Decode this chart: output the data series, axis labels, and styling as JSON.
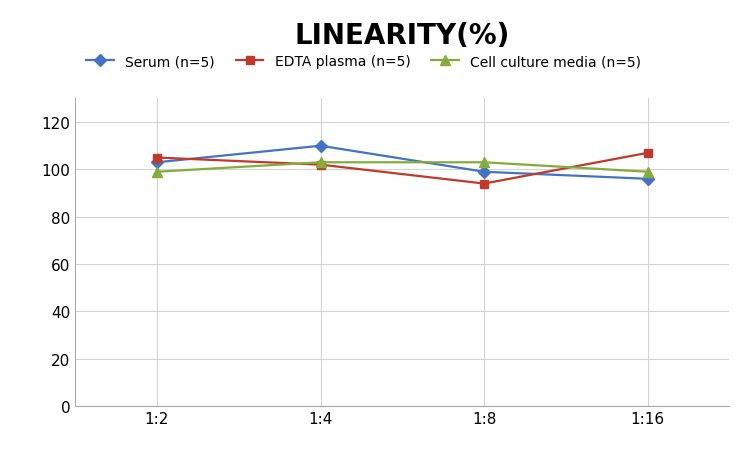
{
  "title": "LINEARITY(%)",
  "x_labels": [
    "1:2",
    "1:4",
    "1:8",
    "1:16"
  ],
  "x_positions": [
    0,
    1,
    2,
    3
  ],
  "series": [
    {
      "label": "Serum (n=5)",
      "values": [
        103,
        110,
        99,
        96
      ],
      "color": "#4472C4",
      "marker": "D",
      "markersize": 6,
      "linewidth": 1.6
    },
    {
      "label": "EDTA plasma (n=5)",
      "values": [
        105,
        102,
        94,
        107
      ],
      "color": "#C0392B",
      "marker": "s",
      "markersize": 6,
      "linewidth": 1.6
    },
    {
      "label": "Cell culture media (n=5)",
      "values": [
        99,
        103,
        103,
        99
      ],
      "color": "#84AC3A",
      "marker": "^",
      "markersize": 7,
      "linewidth": 1.6
    }
  ],
  "ylim": [
    0,
    130
  ],
  "yticks": [
    0,
    20,
    40,
    60,
    80,
    100,
    120
  ],
  "background_color": "#ffffff",
  "grid_color": "#d3d3d3",
  "title_fontsize": 20,
  "legend_fontsize": 10,
  "tick_fontsize": 11
}
